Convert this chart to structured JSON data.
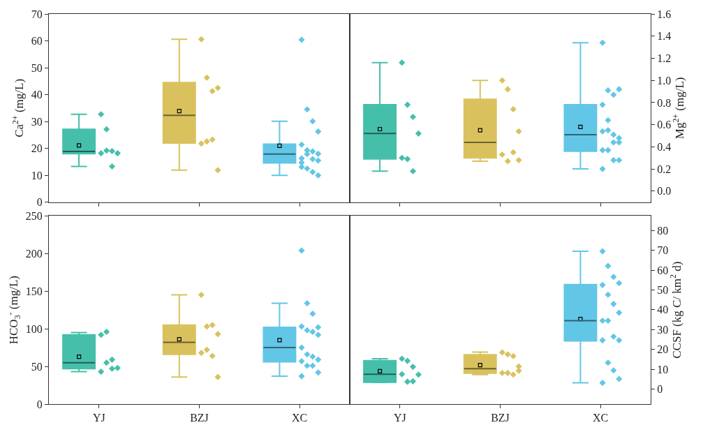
{
  "chart_data": [
    {
      "type": "box",
      "categories": [
        "YJ",
        "BZJ",
        "XC"
      ],
      "ylabel": "Ca$^{2+}$ (mg/L)",
      "ylim": [
        0,
        70
      ],
      "yticks": [
        0,
        10,
        20,
        30,
        40,
        50,
        60,
        70
      ],
      "tick_labels": "y",
      "grid": false,
      "marker": "diamond",
      "colors": [
        "#45bfaa",
        "#d9c25e",
        "#62c6e7"
      ],
      "boxes": [
        {
          "low": 13.3,
          "q1": 18.0,
          "median": 18.9,
          "q3": 27.1,
          "high": 32.7,
          "mean": 21.1
        },
        {
          "low": 11.9,
          "q1": 22.0,
          "median": 32.3,
          "q3": 44.5,
          "high": 60.6,
          "mean": 33.9
        },
        {
          "low": 10.0,
          "q1": 14.6,
          "median": 17.9,
          "q3": 21.6,
          "high": 30.1,
          "mean": 21.0
        }
      ],
      "series": [
        {
          "type": "scatter",
          "color": "#45bfaa",
          "x": [
            "YJ",
            "YJ",
            "YJ",
            "YJ",
            "YJ",
            "YJ",
            "YJ"
          ],
          "values": [
            32.7,
            27.1,
            19.0,
            18.2,
            18.2,
            19.2,
            13.3
          ]
        },
        {
          "type": "scatter",
          "color": "#d9c25e",
          "x": [
            "BZJ",
            "BZJ",
            "BZJ",
            "BZJ",
            "BZJ",
            "BZJ",
            "BZJ",
            "BZJ"
          ],
          "values": [
            60.6,
            46.3,
            41.3,
            42.5,
            21.8,
            22.6,
            23.3,
            11.9
          ]
        },
        {
          "type": "scatter",
          "color": "#62c6e7",
          "x": [
            "XC",
            "XC",
            "XC",
            "XC",
            "XC",
            "XC",
            "XC",
            "XC",
            "XC",
            "XC",
            "XC",
            "XC",
            "XC",
            "XC",
            "XC",
            "XC",
            "XC"
          ],
          "values": [
            60.4,
            34.5,
            30.1,
            26.3,
            21.4,
            19.3,
            16.0,
            15.5,
            14.7,
            17.9,
            18.9,
            18.0,
            13.1,
            12.5,
            11.2,
            10.0,
            16.3
          ]
        }
      ]
    },
    {
      "type": "box",
      "categories": [
        "YJ",
        "BZJ",
        "XC"
      ],
      "y2label": "Mg$^{2+}$ (mg/L)",
      "y2lim": [
        -0.1,
        1.6
      ],
      "y2ticks": [
        {
          "value": 0,
          "label": "0.0"
        },
        0.2,
        0.4,
        0.6,
        0.8,
        {
          "value": 1,
          "label": "1.0"
        },
        1.2,
        1.4,
        1.6
      ],
      "tick_labels": "y",
      "grid": false,
      "marker": "diamond",
      "series": [
        {
          "type": "box",
          "axis": "y2",
          "colors": [
            "#45bfaa",
            "#d9c25e",
            "#62c6e7"
          ],
          "boxes": [
            {
              "low": 0.18,
              "q1": 0.29,
              "median": 0.52,
              "q3": 0.78,
              "high": 1.16,
              "mean": 0.56
            },
            {
              "low": 0.27,
              "q1": 0.3,
              "median": 0.44,
              "q3": 0.83,
              "high": 1.0,
              "mean": 0.55
            },
            {
              "low": 0.2,
              "q1": 0.36,
              "median": 0.51,
              "q3": 0.78,
              "high": 1.34,
              "mean": 0.58
            }
          ]
        },
        {
          "type": "scatter",
          "axis": "y2",
          "color": "#45bfaa",
          "x": [
            "YJ",
            "YJ",
            "YJ",
            "YJ",
            "YJ",
            "YJ",
            "YJ"
          ],
          "values": [
            1.16,
            0.78,
            0.67,
            0.52,
            0.3,
            0.29,
            0.18
          ]
        },
        {
          "type": "scatter",
          "axis": "y2",
          "color": "#d9c25e",
          "x": [
            "BZJ",
            "BZJ",
            "BZJ",
            "BZJ",
            "BZJ",
            "BZJ",
            "BZJ",
            "BZJ"
          ],
          "values": [
            1.0,
            0.92,
            0.74,
            0.54,
            0.33,
            0.27,
            0.35,
            0.28
          ]
        },
        {
          "type": "scatter",
          "axis": "y2",
          "color": "#62c6e7",
          "x": [
            "XC",
            "XC",
            "XC",
            "XC",
            "XC",
            "XC",
            "XC",
            "XC",
            "XC",
            "XC",
            "XC",
            "XC",
            "XC",
            "XC",
            "XC",
            "XC",
            "XC"
          ],
          "values": [
            1.34,
            0.91,
            0.87,
            0.92,
            0.78,
            0.64,
            0.51,
            0.48,
            0.54,
            0.55,
            0.44,
            0.44,
            0.37,
            0.37,
            0.28,
            0.28,
            0.2
          ]
        }
      ]
    },
    {
      "type": "box",
      "categories": [
        "YJ",
        "BZJ",
        "XC"
      ],
      "ylabel": "HCO$_{3}$$^{-}$ (mg/L)",
      "ylim": [
        0,
        250
      ],
      "yticks": [
        0,
        50,
        100,
        150,
        200,
        250
      ],
      "grid": false,
      "marker": "diamond",
      "colors": [
        "#45bfaa",
        "#d9c25e",
        "#62c6e7"
      ],
      "boxes": [
        {
          "low": 43,
          "q1": 47,
          "median": 55,
          "q3": 92,
          "high": 95,
          "mean": 63
        },
        {
          "low": 36,
          "q1": 66,
          "median": 82,
          "q3": 105,
          "high": 145,
          "mean": 86
        },
        {
          "low": 37,
          "q1": 56,
          "median": 75,
          "q3": 102,
          "high": 134,
          "mean": 85
        }
      ],
      "series": [
        {
          "type": "scatter",
          "color": "#45bfaa",
          "x": [
            "YJ",
            "YJ",
            "YJ",
            "YJ",
            "YJ",
            "YJ",
            "YJ"
          ],
          "values": [
            92,
            96,
            47,
            48,
            43,
            55,
            59
          ]
        },
        {
          "type": "scatter",
          "color": "#d9c25e",
          "x": [
            "BZJ",
            "BZJ",
            "BZJ",
            "BZJ",
            "BZJ",
            "BZJ",
            "BZJ",
            "BZJ"
          ],
          "values": [
            145,
            103,
            105,
            93,
            68,
            72,
            64,
            36
          ]
        },
        {
          "type": "scatter",
          "color": "#62c6e7",
          "x": [
            "XC",
            "XC",
            "XC",
            "XC",
            "XC",
            "XC",
            "XC",
            "XC",
            "XC",
            "XC",
            "XC",
            "XC",
            "XC",
            "XC",
            "XC",
            "XC",
            "XC"
          ],
          "values": [
            204,
            134,
            120,
            102,
            103,
            98,
            96,
            92,
            75,
            66,
            63,
            59,
            57,
            51,
            51,
            42,
            37
          ]
        }
      ]
    },
    {
      "type": "box",
      "categories": [
        "YJ",
        "BZJ",
        "XC"
      ],
      "y2label": "CCSF (kg C/ km$^{2}$ d)",
      "y2lim": [
        -7.6,
        87.4
      ],
      "y2ticks": [
        0,
        10,
        20,
        30,
        40,
        50,
        60,
        70,
        80
      ],
      "grid": false,
      "marker": "diamond",
      "series": [
        {
          "type": "box",
          "axis": "y2",
          "colors": [
            "#45bfaa",
            "#d9c25e",
            "#62c6e7"
          ],
          "boxes": [
            {
              "low": 3.3,
              "q1": 3.4,
              "median": 7.5,
              "q3": 14.3,
              "high": 15.3,
              "mean": 9.0
            },
            {
              "low": 7.3,
              "q1": 8.0,
              "median": 10.3,
              "q3": 17.3,
              "high": 18.6,
              "mean": 12.1
            },
            {
              "low": 3.1,
              "q1": 24.3,
              "median": 34.5,
              "q3": 52.7,
              "high": 69.5,
              "mean": 35.3
            }
          ]
        },
        {
          "type": "scatter",
          "axis": "y2",
          "color": "#45bfaa",
          "x": [
            "YJ",
            "YJ",
            "YJ",
            "YJ",
            "YJ",
            "YJ",
            "YJ"
          ],
          "values": [
            15.3,
            14.2,
            11.2,
            7.3,
            7.5,
            3.7,
            3.9
          ]
        },
        {
          "type": "scatter",
          "axis": "y2",
          "color": "#d9c25e",
          "x": [
            "BZJ",
            "BZJ",
            "BZJ",
            "BZJ",
            "BZJ",
            "BZJ",
            "BZJ",
            "BZJ"
          ],
          "values": [
            18.5,
            17.5,
            16.6,
            11.4,
            8.1,
            8.1,
            7.3,
            9.2
          ]
        },
        {
          "type": "scatter",
          "axis": "y2",
          "color": "#62c6e7",
          "x": [
            "XC",
            "XC",
            "XC",
            "XC",
            "XC",
            "XC",
            "XC",
            "XC",
            "XC",
            "XC",
            "XC",
            "XC",
            "XC",
            "XC",
            "XC",
            "XC",
            "XC"
          ],
          "values": [
            69.5,
            62.1,
            56.6,
            53.4,
            52.5,
            47.6,
            42.9,
            38.5,
            34.5,
            34.5,
            26.5,
            24.6,
            24.6,
            13.3,
            9.4,
            5.1,
            3.1
          ]
        }
      ]
    }
  ]
}
